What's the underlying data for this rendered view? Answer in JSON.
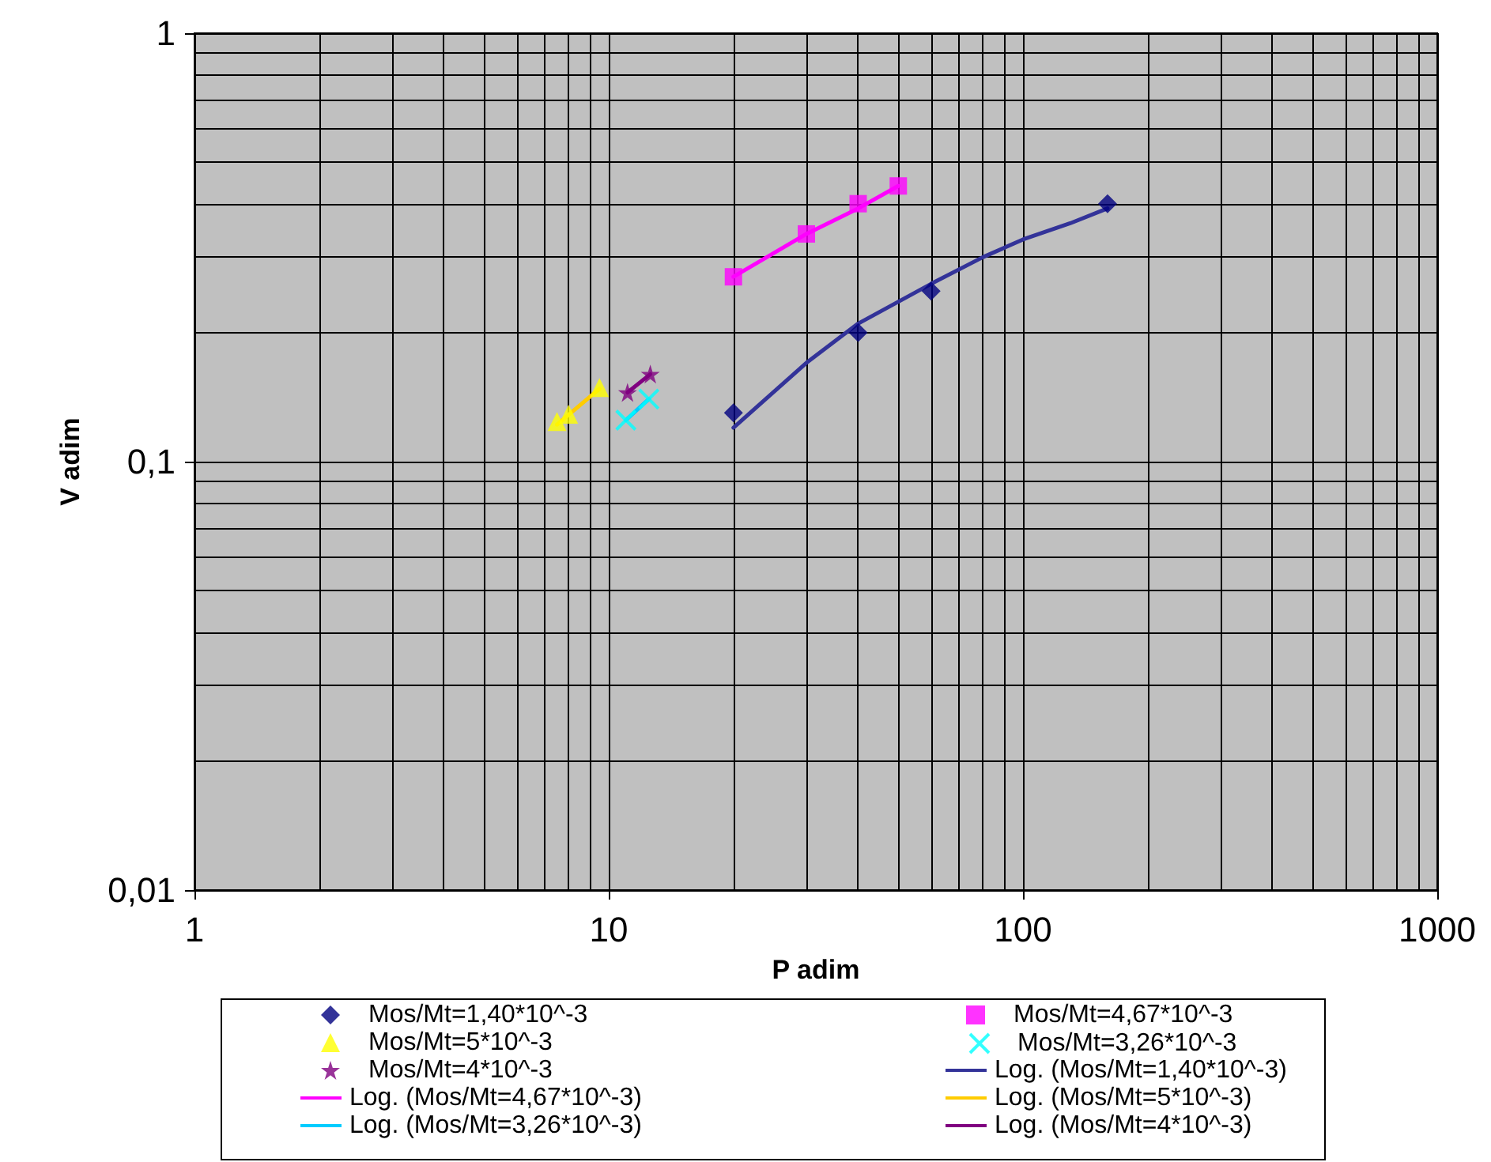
{
  "chart_data": {
    "type": "scatter",
    "xlabel": "P adim",
    "ylabel": "V adim",
    "log": "xy",
    "grid": true,
    "legend": "bottom",
    "xlim": [
      1,
      1000
    ],
    "xticks": [
      1,
      10,
      100,
      1000
    ],
    "ylim": [
      0.01,
      1
    ],
    "yticks": [
      {
        "value": 0.01,
        "label": "0,01"
      },
      {
        "value": 0.1,
        "label": "0,1"
      },
      1
    ],
    "series": [
      {
        "name": "Mos/Mt=1,40*10^-3",
        "color": "#000080",
        "marker": "diamond",
        "x": [
          20,
          40,
          60,
          160
        ],
        "values": [
          0.13,
          0.2,
          0.25,
          0.4
        ]
      },
      {
        "name": "Mos/Mt=4,67*10^-3",
        "color": "#ff00ff",
        "marker": "square",
        "x": [
          20,
          30,
          40,
          50
        ],
        "values": [
          0.27,
          0.34,
          0.4,
          0.44
        ]
      },
      {
        "name": "Mos/Mt=5*10^-3",
        "color": "#ffff00",
        "marker": "triangle",
        "x": [
          7.5,
          8,
          9.5
        ],
        "values": [
          0.124,
          0.129,
          0.149
        ]
      },
      {
        "name": "Mos/Mt=3,26*10^-3",
        "color": "#00ffff",
        "marker": "cross",
        "x": [
          11,
          12.5
        ],
        "values": [
          0.125,
          0.14
        ]
      },
      {
        "name": "Mos/Mt=4*10^-3",
        "color": "#800080",
        "marker": "star",
        "x": [
          11.1,
          12.6
        ],
        "values": [
          0.145,
          0.16
        ]
      },
      {
        "name": "Log. (Mos/Mt=1,40*10^-3)",
        "type": "line",
        "color": "#333399",
        "marker": "none",
        "x": [
          20,
          30,
          40,
          60,
          80,
          100,
          130,
          160
        ],
        "values": [
          0.12,
          0.17,
          0.21,
          0.26,
          0.3,
          0.33,
          0.36,
          0.39
        ]
      },
      {
        "name": "Log. (Mos/Mt=4,67*10^-3)",
        "type": "line",
        "color": "#ff00ff",
        "marker": "none",
        "x": [
          20,
          30,
          40,
          50
        ],
        "values": [
          0.27,
          0.34,
          0.39,
          0.44
        ]
      },
      {
        "name": "Log. (Mos/Mt=5*10^-3)",
        "type": "line",
        "color": "#ffcc00",
        "marker": "none",
        "x": [
          7.5,
          9.5
        ],
        "values": [
          0.122,
          0.148
        ]
      },
      {
        "name": "Log. (Mos/Mt=3,26*10^-3)",
        "type": "line",
        "color": "#00ccff",
        "marker": "none",
        "x": [
          11,
          12.5
        ],
        "values": [
          0.125,
          0.14
        ]
      },
      {
        "name": "Log. (Mos/Mt=4*10^-3)",
        "type": "line",
        "color": "#800080",
        "marker": "none",
        "x": [
          11.1,
          12.6
        ],
        "values": [
          0.145,
          0.16
        ]
      }
    ]
  }
}
